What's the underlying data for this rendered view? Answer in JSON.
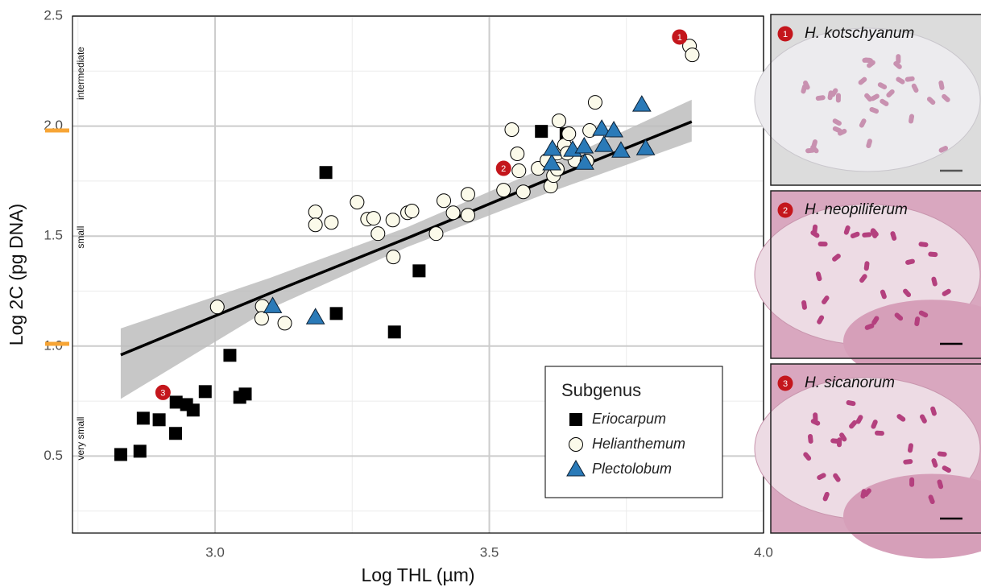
{
  "chart_data": {
    "type": "scatter",
    "x_label": "Log THL (µm)",
    "y_label": "Log 2C (pg DNA)",
    "xlim": [
      2.74,
      4.0
    ],
    "ylim": [
      0.15,
      2.5
    ],
    "xticks": [
      {
        "value": 3,
        "label": "3.0"
      },
      3.5,
      {
        "value": 4,
        "label": "4.0"
      }
    ],
    "yticks": [
      0.5,
      {
        "value": 1,
        "label": "1.0"
      },
      1.5,
      {
        "value": 2,
        "label": "2.0"
      },
      2.5
    ],
    "x_minor_ticks": [
      2.75,
      3.25,
      3.75
    ],
    "y_minor_ticks": [
      0.25,
      0.75,
      1.25,
      1.75,
      2.25
    ],
    "grid": true,
    "legend_title": "Subgenus",
    "legend_position": "bottom-right",
    "series": [
      {
        "name": "Eriocarpum",
        "marker": "square",
        "color": "#000000",
        "x": [
          2.828,
          2.863,
          2.869,
          2.898,
          2.928,
          2.929,
          2.948,
          2.96,
          2.982,
          3.027,
          3.045,
          3.055,
          3.202,
          3.221,
          3.327,
          3.372,
          3.595,
          3.64
        ],
        "values": [
          0.507,
          0.522,
          0.672,
          0.665,
          0.603,
          0.745,
          0.734,
          0.709,
          0.793,
          0.958,
          0.767,
          0.782,
          1.789,
          1.148,
          1.064,
          1.342,
          1.976,
          1.965
        ]
      },
      {
        "name": "Helianthemum",
        "marker": "circle",
        "color": "#fbfaea",
        "x": [
          3.865,
          3.87,
          3.004,
          3.086,
          3.085,
          3.127,
          3.183,
          3.183,
          3.212,
          3.259,
          3.278,
          3.289,
          3.297,
          3.324,
          3.325,
          3.351,
          3.359,
          3.403,
          3.417,
          3.434,
          3.461,
          3.461,
          3.526,
          3.541,
          3.551,
          3.554,
          3.562,
          3.589,
          3.605,
          3.612,
          3.617,
          3.624,
          3.624,
          3.627,
          3.637,
          3.645,
          3.693,
          3.683,
          3.656,
          3.678,
          3.642
        ],
        "values": [
          2.364,
          2.324,
          1.178,
          1.181,
          1.126,
          1.104,
          1.61,
          1.551,
          1.562,
          1.654,
          1.577,
          1.581,
          1.511,
          1.573,
          1.405,
          1.606,
          1.614,
          1.511,
          1.661,
          1.606,
          1.69,
          1.595,
          1.709,
          1.984,
          1.874,
          1.797,
          1.701,
          1.808,
          1.844,
          1.727,
          1.775,
          1.804,
          1.877,
          2.024,
          1.914,
          1.965,
          2.108,
          1.98,
          1.844,
          1.841,
          1.877
        ]
      },
      {
        "name": "Plectolobum",
        "marker": "triangle",
        "color": "#2a7ab8",
        "x": [
          3.105,
          3.183,
          3.614,
          3.615,
          3.652,
          3.673,
          3.674,
          3.705,
          3.709,
          3.727,
          3.74,
          3.778,
          3.785
        ],
        "values": [
          1.181,
          1.13,
          1.83,
          1.896,
          1.892,
          1.907,
          1.833,
          1.987,
          1.914,
          1.98,
          1.888,
          2.097,
          1.899
        ]
      }
    ],
    "fit": {
      "x": [
        2.828,
        3.1,
        3.35,
        3.6,
        3.869
      ],
      "y": [
        0.96,
        1.24,
        1.49,
        1.75,
        2.02
      ],
      "lower": [
        0.76,
        1.17,
        1.45,
        1.69,
        1.93
      ],
      "upper": [
        1.08,
        1.31,
        1.54,
        1.81,
        2.12
      ]
    },
    "size_thresholds": [
      1.01,
      1.98
    ],
    "size_classes": [
      "very small",
      "small",
      "intermediate"
    ],
    "annotations": [
      {
        "label": "1",
        "x": 3.847,
        "y": 2.405
      },
      {
        "label": "2",
        "x": 3.526,
        "y": 1.808
      },
      {
        "label": "3",
        "x": 2.905,
        "y": 0.789
      }
    ],
    "panels": [
      {
        "badge": "1",
        "label": "H. kotschyanum"
      },
      {
        "badge": "2",
        "label": "H. neopiliferum"
      },
      {
        "badge": "3",
        "label": "H. sicanorum"
      }
    ]
  }
}
